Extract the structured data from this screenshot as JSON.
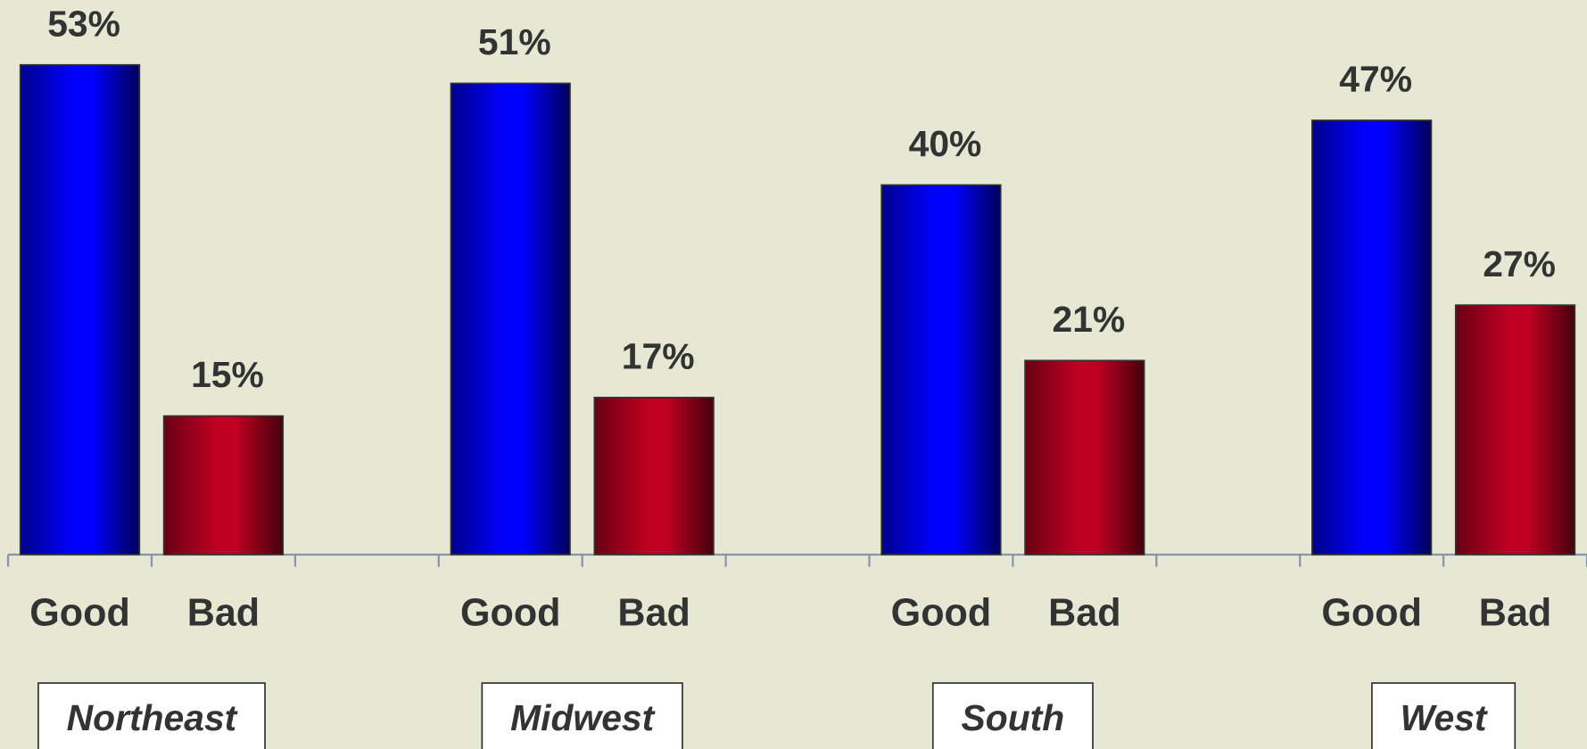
{
  "chart_data": {
    "type": "bar",
    "categories": [
      "Northeast",
      "Midwest",
      "South",
      "West"
    ],
    "series": [
      {
        "name": "Good",
        "color": "#0000ff",
        "values": [
          53,
          51,
          40,
          47
        ],
        "value_labels": [
          "53%",
          "51%",
          "40%",
          "47%"
        ]
      },
      {
        "name": "Bad",
        "color": "#c00022",
        "values": [
          15,
          17,
          21,
          27
        ],
        "value_labels": [
          "15%",
          "17%",
          "21%",
          "27%"
        ]
      }
    ],
    "ylim": [
      0,
      60
    ]
  }
}
